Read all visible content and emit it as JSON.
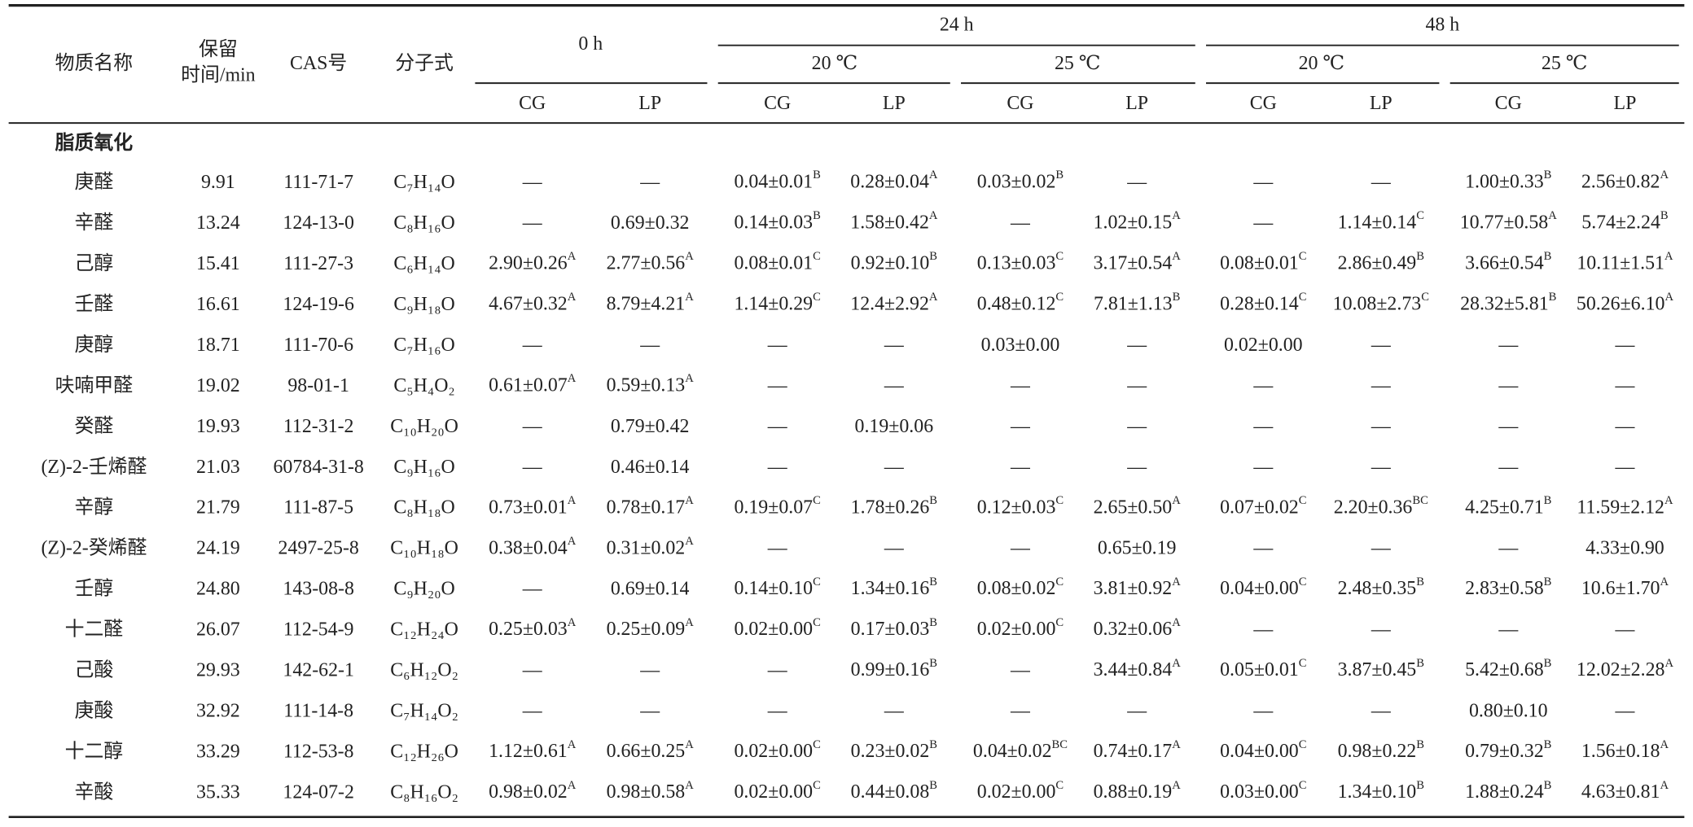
{
  "header": {
    "name": "物质名称",
    "retention": [
      "保留",
      "时间/min"
    ],
    "cas": "CAS号",
    "formula": "分子式",
    "times": [
      {
        "label": "0 h"
      },
      {
        "label": "24 h",
        "temps": [
          "20 ℃",
          "25 ℃"
        ]
      },
      {
        "label": "48 h",
        "temps": [
          "20 ℃",
          "25 ℃"
        ]
      }
    ],
    "groups": [
      "CG",
      "LP"
    ]
  },
  "section": "脂质氧化",
  "rows": [
    {
      "name": "庚醛",
      "rt": "9.91",
      "cas": "111-71-7",
      "formula": "C₇H₁₄O",
      "values": [
        "—",
        "—",
        {
          "text": "0.04±0.01",
          "sup": "B"
        },
        {
          "text": "0.28±0.04",
          "sup": "A"
        },
        {
          "text": "0.03±0.02",
          "sup": "B"
        },
        "—",
        "—",
        "—",
        {
          "text": "1.00±0.33",
          "sup": "B"
        },
        {
          "text": "2.56±0.82",
          "sup": "A"
        }
      ]
    },
    {
      "name": "辛醛",
      "rt": "13.24",
      "cas": "124-13-0",
      "formula": "C₈H₁₆O",
      "values": [
        "—",
        "0.69±0.32",
        {
          "text": "0.14±0.03",
          "sup": "B"
        },
        {
          "text": "1.58±0.42",
          "sup": "A"
        },
        "—",
        {
          "text": "1.02±0.15",
          "sup": "A"
        },
        "—",
        {
          "text": "1.14±0.14",
          "sup": "C"
        },
        {
          "text": "10.77±0.58",
          "sup": "A"
        },
        {
          "text": "5.74±2.24",
          "sup": "B"
        }
      ]
    },
    {
      "name": "己醇",
      "rt": "15.41",
      "cas": "111-27-3",
      "formula": "C₆H₁₄O",
      "values": [
        {
          "text": "2.90±0.26",
          "sup": "A"
        },
        {
          "text": "2.77±0.56",
          "sup": "A"
        },
        {
          "text": "0.08±0.01",
          "sup": "C"
        },
        {
          "text": "0.92±0.10",
          "sup": "B"
        },
        {
          "text": "0.13±0.03",
          "sup": "C"
        },
        {
          "text": "3.17±0.54",
          "sup": "A"
        },
        {
          "text": "0.08±0.01",
          "sup": "C"
        },
        {
          "text": "2.86±0.49",
          "sup": "B"
        },
        {
          "text": "3.66±0.54",
          "sup": "B"
        },
        {
          "text": "10.11±1.51",
          "sup": "A"
        }
      ]
    },
    {
      "name": "壬醛",
      "rt": "16.61",
      "cas": "124-19-6",
      "formula": "C₉H₁₈O",
      "values": [
        {
          "text": "4.67±0.32",
          "sup": "A"
        },
        {
          "text": "8.79±4.21",
          "sup": "A"
        },
        {
          "text": "1.14±0.29",
          "sup": "C"
        },
        {
          "text": "12.4±2.92",
          "sup": "A"
        },
        {
          "text": "0.48±0.12",
          "sup": "C"
        },
        {
          "text": "7.81±1.13",
          "sup": "B"
        },
        {
          "text": "0.28±0.14",
          "sup": "C"
        },
        {
          "text": "10.08±2.73",
          "sup": "C"
        },
        {
          "text": "28.32±5.81",
          "sup": "B"
        },
        {
          "text": "50.26±6.10",
          "sup": "A"
        }
      ]
    },
    {
      "name": "庚醇",
      "rt": "18.71",
      "cas": "111-70-6",
      "formula": "C₇H₁₆O",
      "values": [
        "—",
        "—",
        "—",
        "—",
        "0.03±0.00",
        "—",
        "0.02±0.00",
        "—",
        "—",
        "—"
      ]
    },
    {
      "name": "呋喃甲醛",
      "rt": "19.02",
      "cas": "98-01-1",
      "formula": "C₅H₄O₂",
      "values": [
        {
          "text": "0.61±0.07",
          "sup": "A"
        },
        {
          "text": "0.59±0.13",
          "sup": "A"
        },
        "—",
        "—",
        "—",
        "—",
        "—",
        "—",
        "—",
        "—"
      ]
    },
    {
      "name": "癸醛",
      "rt": "19.93",
      "cas": "112-31-2",
      "formula": "C₁₀H₂₀O",
      "values": [
        "—",
        "0.79±0.42",
        "—",
        "0.19±0.06",
        "—",
        "—",
        "—",
        "—",
        "—",
        "—"
      ]
    },
    {
      "name": "(Z)-2-壬烯醛",
      "rt": "21.03",
      "cas": "60784-31-8",
      "formula": "C₉H₁₆O",
      "values": [
        "—",
        "0.46±0.14",
        "—",
        "—",
        "—",
        "—",
        "—",
        "—",
        "—",
        "—"
      ]
    },
    {
      "name": "辛醇",
      "rt": "21.79",
      "cas": "111-87-5",
      "formula": "C₈H₁₈O",
      "values": [
        {
          "text": "0.73±0.01",
          "sup": "A"
        },
        {
          "text": "0.78±0.17",
          "sup": "A"
        },
        {
          "text": "0.19±0.07",
          "sup": "C"
        },
        {
          "text": "1.78±0.26",
          "sup": "B"
        },
        {
          "text": "0.12±0.03",
          "sup": "C"
        },
        {
          "text": "2.65±0.50",
          "sup": "A"
        },
        {
          "text": "0.07±0.02",
          "sup": "C"
        },
        {
          "text": "2.20±0.36",
          "sup": "BC"
        },
        {
          "text": "4.25±0.71",
          "sup": "B"
        },
        {
          "text": "11.59±2.12",
          "sup": "A"
        }
      ]
    },
    {
      "name": "(Z)-2-癸烯醛",
      "rt": "24.19",
      "cas": "2497-25-8",
      "formula": "C₁₀H₁₈O",
      "values": [
        {
          "text": "0.38±0.04",
          "sup": "A"
        },
        {
          "text": "0.31±0.02",
          "sup": "A"
        },
        "—",
        "—",
        "—",
        "0.65±0.19",
        "—",
        "—",
        "—",
        "4.33±0.90"
      ]
    },
    {
      "name": "壬醇",
      "rt": "24.80",
      "cas": "143-08-8",
      "formula": "C₉H₂₀O",
      "values": [
        "—",
        "0.69±0.14",
        {
          "text": "0.14±0.10",
          "sup": "C"
        },
        {
          "text": "1.34±0.16",
          "sup": "B"
        },
        {
          "text": "0.08±0.02",
          "sup": "C"
        },
        {
          "text": "3.81±0.92",
          "sup": "A"
        },
        {
          "text": "0.04±0.00",
          "sup": "C"
        },
        {
          "text": "2.48±0.35",
          "sup": "B"
        },
        {
          "text": "2.83±0.58",
          "sup": "B"
        },
        {
          "text": "10.6±1.70",
          "sup": "A"
        }
      ]
    },
    {
      "name": "十二醛",
      "rt": "26.07",
      "cas": "112-54-9",
      "formula": "C₁₂H₂₄O",
      "values": [
        {
          "text": "0.25±0.03",
          "sup": "A"
        },
        {
          "text": "0.25±0.09",
          "sup": "A"
        },
        {
          "text": "0.02±0.00",
          "sup": "C"
        },
        {
          "text": "0.17±0.03",
          "sup": "B"
        },
        {
          "text": "0.02±0.00",
          "sup": "C"
        },
        {
          "text": "0.32±0.06",
          "sup": "A"
        },
        "—",
        "—",
        "—",
        "—"
      ]
    },
    {
      "name": "己酸",
      "rt": "29.93",
      "cas": "142-62-1",
      "formula": "C₆H₁₂O₂",
      "values": [
        "—",
        "—",
        "—",
        {
          "text": "0.99±0.16",
          "sup": "B"
        },
        "—",
        {
          "text": "3.44±0.84",
          "sup": "A"
        },
        {
          "text": "0.05±0.01",
          "sup": "C"
        },
        {
          "text": "3.87±0.45",
          "sup": "B"
        },
        {
          "text": "5.42±0.68",
          "sup": "B"
        },
        {
          "text": "12.02±2.28",
          "sup": "A"
        }
      ]
    },
    {
      "name": "庚酸",
      "rt": "32.92",
      "cas": "111-14-8",
      "formula": "C₇H₁₄O₂",
      "values": [
        "—",
        "—",
        "—",
        "—",
        "—",
        "—",
        "—",
        "—",
        "0.80±0.10",
        "—"
      ]
    },
    {
      "name": "十二醇",
      "rt": "33.29",
      "cas": "112-53-8",
      "formula": "C₁₂H₂₆O",
      "values": [
        {
          "text": "1.12±0.61",
          "sup": "A"
        },
        {
          "text": "0.66±0.25",
          "sup": "A"
        },
        {
          "text": "0.02±0.00",
          "sup": "C"
        },
        {
          "text": "0.23±0.02",
          "sup": "B"
        },
        {
          "text": "0.04±0.02",
          "sup": "BC"
        },
        {
          "text": "0.74±0.17",
          "sup": "A"
        },
        {
          "text": "0.04±0.00",
          "sup": "C"
        },
        {
          "text": "0.98±0.22",
          "sup": "B"
        },
        {
          "text": "0.79±0.32",
          "sup": "B"
        },
        {
          "text": "1.56±0.18",
          "sup": "A"
        }
      ]
    },
    {
      "name": "辛酸",
      "rt": "35.33",
      "cas": "124-07-2",
      "formula": "C₈H₁₆O₂",
      "values": [
        {
          "text": "0.98±0.02",
          "sup": "A"
        },
        {
          "text": "0.98±0.58",
          "sup": "A"
        },
        {
          "text": "0.02±0.00",
          "sup": "C"
        },
        {
          "text": "0.44±0.08",
          "sup": "B"
        },
        {
          "text": "0.02±0.00",
          "sup": "C"
        },
        {
          "text": "0.88±0.19",
          "sup": "A"
        },
        {
          "text": "0.03±0.00",
          "sup": "C"
        },
        {
          "text": "1.34±0.10",
          "sup": "B"
        },
        {
          "text": "1.88±0.24",
          "sup": "B"
        },
        {
          "text": "4.63±0.81",
          "sup": "A"
        }
      ]
    }
  ]
}
